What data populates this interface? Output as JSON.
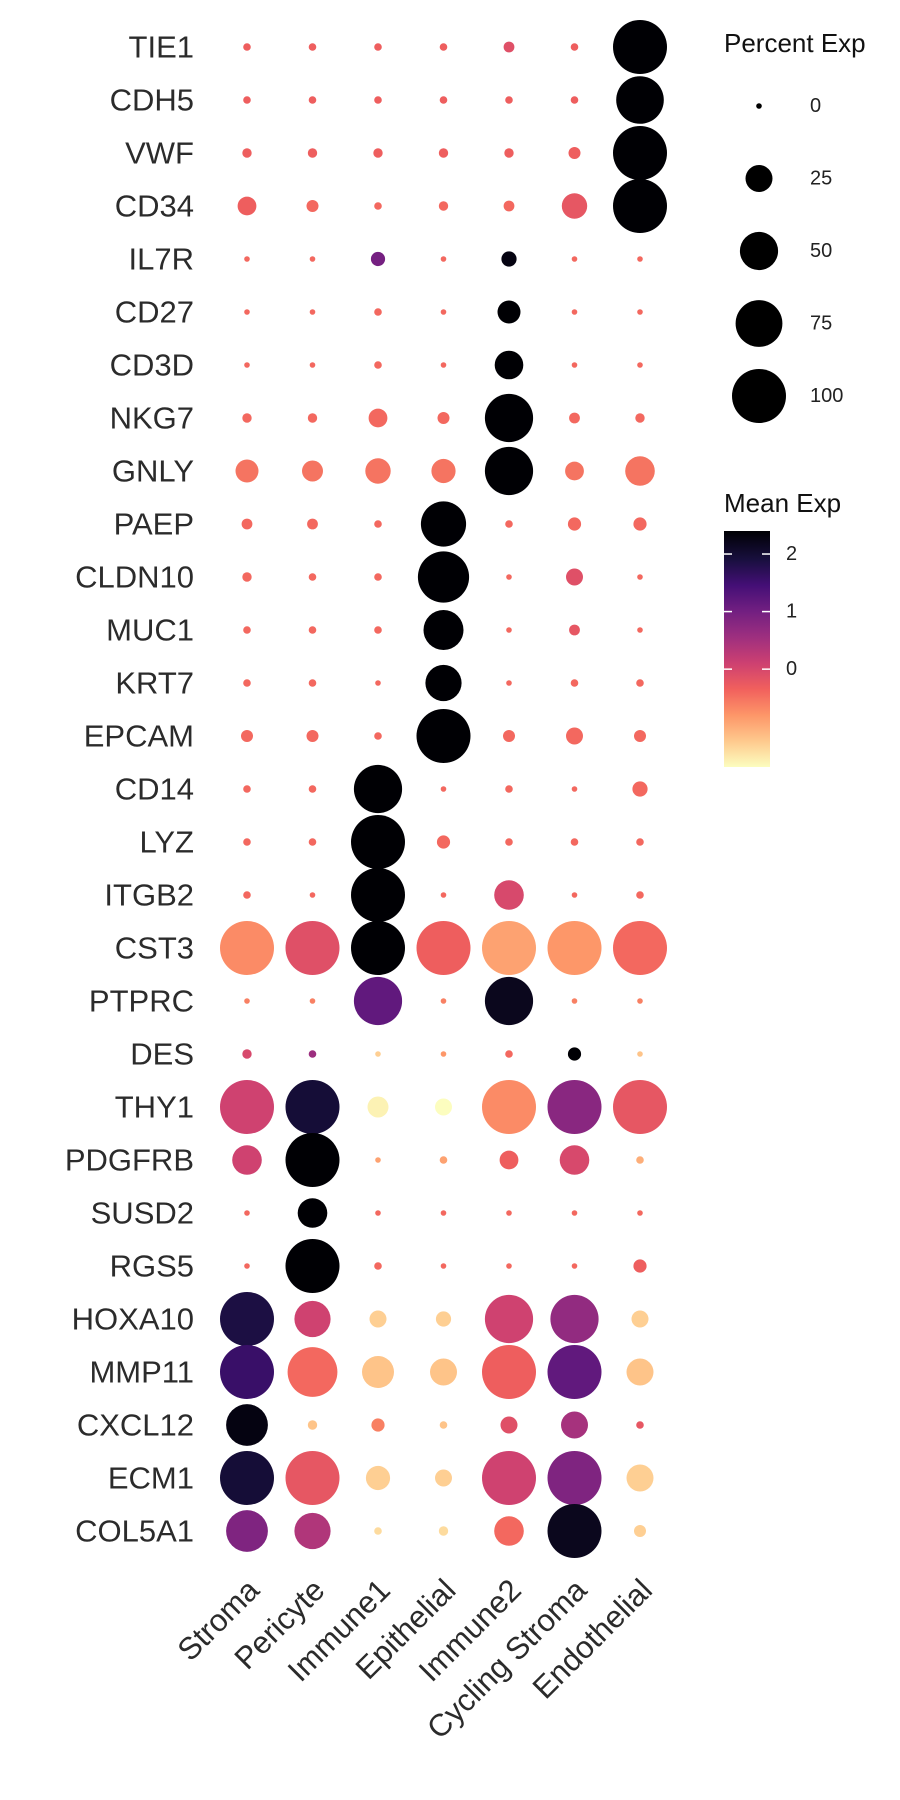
{
  "chart_data": {
    "type": "dot",
    "genes": [
      "TIE1",
      "CDH5",
      "VWF",
      "CD34",
      "IL7R",
      "CD27",
      "CD3D",
      "NKG7",
      "GNLY",
      "PAEP",
      "CLDN10",
      "MUC1",
      "KRT7",
      "EPCAM",
      "CD14",
      "LYZ",
      "ITGB2",
      "CST3",
      "PTPRC",
      "DES",
      "THY1",
      "PDGFRB",
      "SUSD2",
      "RGS5",
      "HOXA10",
      "MMP11",
      "CXCL12",
      "ECM1",
      "COL5A1"
    ],
    "cell_types": [
      "Stroma",
      "Pericyte",
      "Immune1",
      "Epithelial",
      "Immune2",
      "Cycling Stroma",
      "Endothelial"
    ],
    "values": [
      {
        "gene": "TIE1",
        "pct": [
          2,
          2,
          2,
          2,
          4,
          2,
          100
        ],
        "mean": [
          -0.3,
          -0.3,
          -0.3,
          -0.3,
          -0.1,
          -0.3,
          2.5
        ]
      },
      {
        "gene": "CDH5",
        "pct": [
          2,
          2,
          2,
          2,
          2,
          2,
          78
        ],
        "mean": [
          -0.3,
          -0.3,
          -0.3,
          -0.3,
          -0.3,
          -0.3,
          2.5
        ]
      },
      {
        "gene": "VWF",
        "pct": [
          3,
          3,
          3,
          3,
          3,
          5,
          100
        ],
        "mean": [
          -0.3,
          -0.3,
          -0.3,
          -0.3,
          -0.3,
          -0.3,
          2.5
        ]
      },
      {
        "gene": "CD34",
        "pct": [
          12,
          5,
          2,
          3,
          4,
          22,
          100
        ],
        "mean": [
          -0.3,
          -0.4,
          -0.4,
          -0.4,
          -0.4,
          -0.2,
          2.5
        ]
      },
      {
        "gene": "IL7R",
        "pct": [
          1,
          1,
          7,
          1,
          8,
          1,
          1
        ],
        "mean": [
          -0.4,
          -0.4,
          1.0,
          -0.4,
          2.3,
          -0.4,
          -0.4
        ]
      },
      {
        "gene": "CD27",
        "pct": [
          1,
          1,
          2,
          1,
          18,
          1,
          1
        ],
        "mean": [
          -0.4,
          -0.4,
          -0.4,
          -0.4,
          2.5,
          -0.4,
          -0.4
        ]
      },
      {
        "gene": "CD3D",
        "pct": [
          1,
          1,
          2,
          1,
          28,
          1,
          1
        ],
        "mean": [
          -0.4,
          -0.4,
          -0.4,
          -0.4,
          2.5,
          -0.4,
          -0.4
        ]
      },
      {
        "gene": "NKG7",
        "pct": [
          3,
          3,
          12,
          5,
          80,
          4,
          3
        ],
        "mean": [
          -0.4,
          -0.4,
          -0.4,
          -0.4,
          2.5,
          -0.4,
          -0.4
        ]
      },
      {
        "gene": "GNLY",
        "pct": [
          18,
          15,
          22,
          20,
          80,
          12,
          30
        ],
        "mean": [
          -0.5,
          -0.5,
          -0.5,
          -0.5,
          2.5,
          -0.5,
          -0.5
        ]
      },
      {
        "gene": "PAEP",
        "pct": [
          4,
          4,
          2,
          70,
          2,
          6,
          6
        ],
        "mean": [
          -0.4,
          -0.4,
          -0.4,
          2.5,
          -0.4,
          -0.4,
          -0.4
        ]
      },
      {
        "gene": "CLDN10",
        "pct": [
          3,
          2,
          2,
          90,
          1,
          10,
          1
        ],
        "mean": [
          -0.4,
          -0.4,
          -0.4,
          2.5,
          -0.4,
          -0.1,
          -0.4
        ]
      },
      {
        "gene": "MUC1",
        "pct": [
          2,
          2,
          2,
          55,
          1,
          4,
          1
        ],
        "mean": [
          -0.4,
          -0.4,
          -0.4,
          2.5,
          -0.4,
          -0.2,
          -0.4
        ]
      },
      {
        "gene": "KRT7",
        "pct": [
          2,
          2,
          1,
          45,
          1,
          2,
          2
        ],
        "mean": [
          -0.4,
          -0.4,
          -0.4,
          2.5,
          -0.4,
          -0.4,
          -0.4
        ]
      },
      {
        "gene": "EPCAM",
        "pct": [
          5,
          5,
          2,
          100,
          5,
          10,
          5
        ],
        "mean": [
          -0.4,
          -0.4,
          -0.4,
          2.5,
          -0.4,
          -0.4,
          -0.4
        ]
      },
      {
        "gene": "CD14",
        "pct": [
          2,
          2,
          80,
          1,
          2,
          1,
          8
        ],
        "mean": [
          -0.4,
          -0.4,
          2.5,
          -0.4,
          -0.4,
          -0.4,
          -0.4
        ]
      },
      {
        "gene": "LYZ",
        "pct": [
          2,
          2,
          100,
          6,
          2,
          2,
          2
        ],
        "mean": [
          -0.4,
          -0.4,
          2.5,
          -0.4,
          -0.4,
          -0.4,
          -0.4
        ]
      },
      {
        "gene": "ITGB2",
        "pct": [
          2,
          1,
          100,
          1,
          30,
          1,
          2
        ],
        "mean": [
          -0.4,
          -0.4,
          2.5,
          -0.4,
          0.0,
          -0.4,
          -0.4
        ]
      },
      {
        "gene": "CST3",
        "pct": [
          100,
          100,
          100,
          100,
          100,
          100,
          100
        ],
        "mean": [
          -0.7,
          -0.1,
          2.5,
          -0.3,
          -0.9,
          -0.8,
          -0.4
        ]
      },
      {
        "gene": "PTPRC",
        "pct": [
          1,
          1,
          80,
          1,
          80,
          1,
          1
        ],
        "mean": [
          -0.6,
          -0.6,
          1.2,
          -0.6,
          2.2,
          -0.6,
          -0.6
        ]
      },
      {
        "gene": "DES",
        "pct": [
          3,
          2,
          1,
          1,
          2,
          6,
          1
        ],
        "mean": [
          0.0,
          0.6,
          -1.3,
          -0.8,
          -0.4,
          2.5,
          -1.2
        ]
      },
      {
        "gene": "THY1",
        "pct": [
          100,
          100,
          15,
          10,
          100,
          100,
          100
        ],
        "mean": [
          0.1,
          2.0,
          -1.6,
          -1.7,
          -0.7,
          0.8,
          -0.2
        ]
      },
      {
        "gene": "PDGFRB",
        "pct": [
          30,
          100,
          1,
          2,
          12,
          30,
          2
        ],
        "mean": [
          0.1,
          2.5,
          -0.9,
          -0.9,
          -0.3,
          0.0,
          -1.0
        ]
      },
      {
        "gene": "SUSD2",
        "pct": [
          1,
          30,
          1,
          1,
          1,
          1,
          1
        ],
        "mean": [
          -0.4,
          2.5,
          -0.4,
          -0.4,
          -0.4,
          -0.4,
          -0.4
        ]
      },
      {
        "gene": "RGS5",
        "pct": [
          1,
          100,
          2,
          1,
          1,
          1,
          6
        ],
        "mean": [
          -0.4,
          2.5,
          -0.4,
          -0.4,
          -0.4,
          -0.4,
          -0.3
        ]
      },
      {
        "gene": "HOXA10",
        "pct": [
          100,
          45,
          10,
          8,
          80,
          80,
          10
        ],
        "mean": [
          1.9,
          0.1,
          -1.3,
          -1.3,
          0.1,
          0.7,
          -1.3
        ]
      },
      {
        "gene": "MMP11",
        "pct": [
          100,
          85,
          35,
          25,
          100,
          100,
          25
        ],
        "mean": [
          1.6,
          -0.4,
          -1.2,
          -1.2,
          -0.3,
          1.2,
          -1.2
        ]
      },
      {
        "gene": "CXCL12",
        "pct": [
          60,
          3,
          6,
          2,
          10,
          25,
          2
        ],
        "mean": [
          2.3,
          -1.2,
          -0.6,
          -1.2,
          -0.1,
          0.5,
          -0.2
        ]
      },
      {
        "gene": "ECM1",
        "pct": [
          100,
          100,
          20,
          10,
          100,
          100,
          25
        ],
        "mean": [
          2.0,
          -0.2,
          -1.3,
          -1.3,
          0.1,
          0.9,
          -1.3
        ]
      },
      {
        "gene": "COL5A1",
        "pct": [
          60,
          45,
          2,
          3,
          30,
          100,
          5
        ],
        "mean": [
          0.9,
          0.4,
          -1.4,
          -1.4,
          -0.4,
          2.2,
          -1.3
        ]
      }
    ],
    "size_legend": {
      "title": "Percent Exp",
      "ticks": [
        0,
        25,
        50,
        75,
        100
      ]
    },
    "color_legend": {
      "title": "Mean Exp",
      "ticks": [
        2,
        1,
        0
      ],
      "range": [
        -1.7,
        2.4
      ],
      "palette": [
        "#fcfdbf",
        "#fec98d",
        "#fd9668",
        "#f1605d",
        "#cd4071",
        "#9e2f7f",
        "#721f81",
        "#440f76",
        "#180f3e",
        "#000004"
      ]
    }
  }
}
